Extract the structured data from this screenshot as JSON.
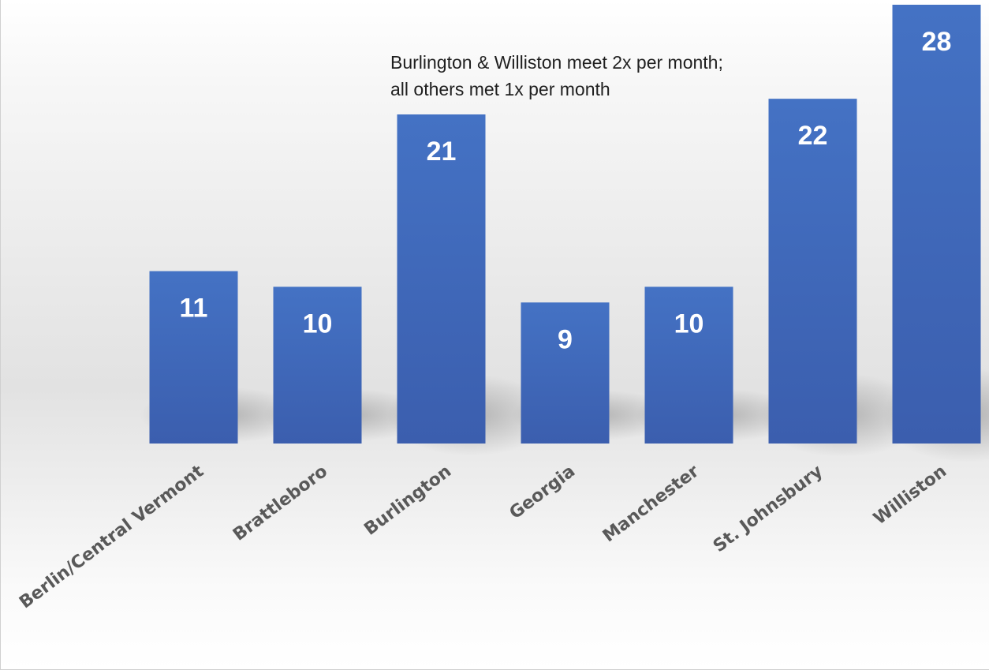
{
  "chart_data": {
    "type": "bar",
    "categories": [
      "Berlin/Central Vermont",
      "Brattleboro",
      "Burlington",
      "Georgia",
      "Manchester",
      "St. Johnsbury",
      "Williston"
    ],
    "values": [
      11,
      10,
      21,
      9,
      10,
      22,
      28
    ],
    "data_labels": [
      "11",
      "10",
      "21",
      "9",
      "10",
      "22",
      "28"
    ],
    "annotation": [
      "Burlington & Williston meet 2x per month;",
      "all others met 1x per month"
    ],
    "title": "",
    "xlabel": "",
    "ylabel": "",
    "ylim": [
      0,
      28
    ],
    "bar_color": "#4472C4",
    "label_color": "#ffffff",
    "category_label_color": "#595959",
    "grid": false,
    "legend": "none"
  }
}
